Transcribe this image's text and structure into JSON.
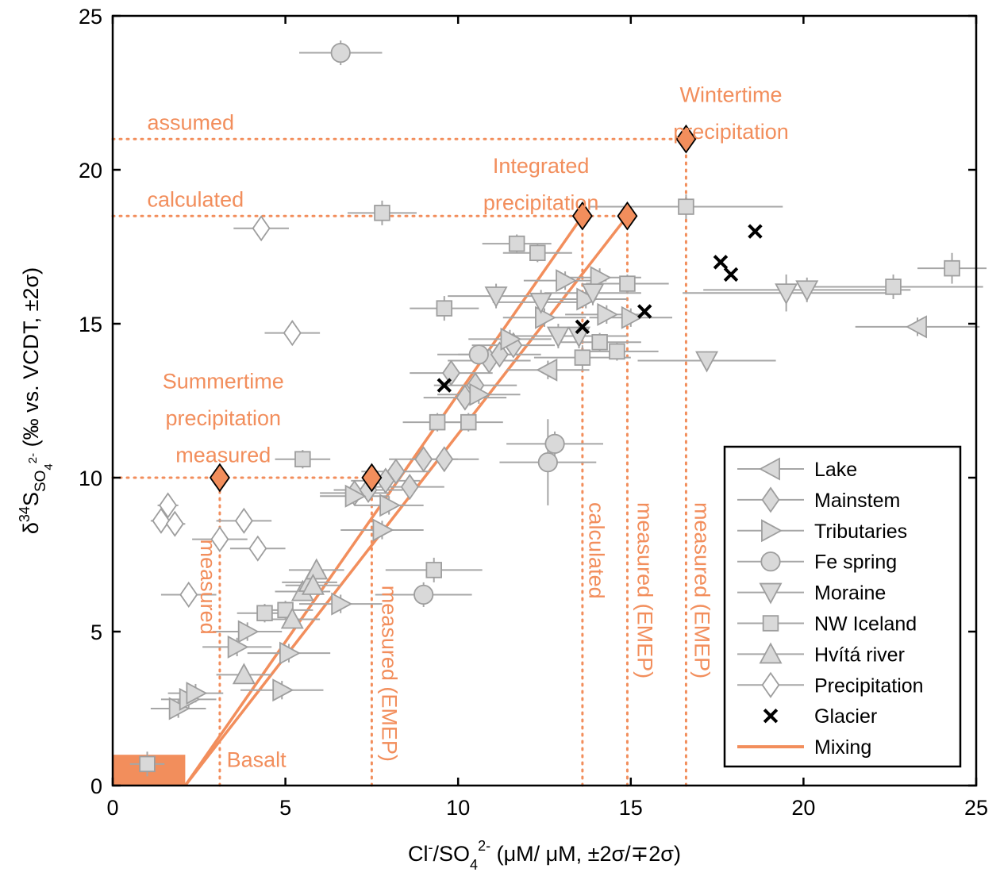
{
  "chart_data": {
    "type": "scatter",
    "xlim": [
      0,
      25
    ],
    "ylim": [
      0,
      25
    ],
    "xticks": [
      0,
      5,
      10,
      15,
      20,
      25
    ],
    "yticks": [
      0,
      5,
      10,
      15,
      20,
      25
    ],
    "xlabel": {
      "main": "Cl",
      "sup1": "-",
      "mid": "/SO",
      "sub": "4",
      "sup2": "2-",
      "rest": " (μM/ μM, ±2σ/∓2σ)"
    },
    "ylabel": {
      "delta": "δ",
      "sup": "34",
      "main": "S",
      "sub": "SO",
      "subsub": "4",
      "subsup": "2-",
      "rest": " (‰ vs. VCDT, ±2σ)"
    },
    "colors": {
      "marker_fill": "#D9D9D9",
      "marker_edge": "#9E9E9E",
      "error_bar": "#A6A6A6",
      "mixing": "#F28E5C",
      "endmember": "#F28E5C",
      "glacier": "#000000"
    },
    "legend": {
      "position": "bottom-right",
      "entries": [
        {
          "label": "Lake",
          "marker": "triangle-left"
        },
        {
          "label": "Mainstem",
          "marker": "diamond"
        },
        {
          "label": "Tributaries",
          "marker": "triangle-right"
        },
        {
          "label": "Fe spring",
          "marker": "circle"
        },
        {
          "label": "Moraine",
          "marker": "triangle-down"
        },
        {
          "label": "NW Iceland",
          "marker": "square"
        },
        {
          "label": "Hvítá river",
          "marker": "triangle-up"
        },
        {
          "label": "Precipitation",
          "marker": "diamond-open"
        },
        {
          "label": "Glacier",
          "marker": "x"
        },
        {
          "label": "Mixing",
          "marker": "line"
        }
      ]
    },
    "annotations": [
      {
        "text": "Wintertime",
        "x": 17.9,
        "y": 22.2,
        "anchor": "middle",
        "rotate": false
      },
      {
        "text": "precipitation",
        "x": 17.9,
        "y": 21.0,
        "anchor": "middle",
        "rotate": false
      },
      {
        "text": "Integrated",
        "x": 12.4,
        "y": 19.9,
        "anchor": "middle",
        "rotate": false
      },
      {
        "text": "precipitation",
        "x": 12.4,
        "y": 18.7,
        "anchor": "middle",
        "rotate": false
      },
      {
        "text": "assumed",
        "x": 1.0,
        "y": 21.3,
        "anchor": "start",
        "rotate": false
      },
      {
        "text": "calculated",
        "x": 1.0,
        "y": 18.8,
        "anchor": "start",
        "rotate": false
      },
      {
        "text": "Summertime",
        "x": 3.2,
        "y": 12.9,
        "anchor": "middle",
        "rotate": false
      },
      {
        "text": "precipitation",
        "x": 3.2,
        "y": 11.7,
        "anchor": "middle",
        "rotate": false
      },
      {
        "text": "measured",
        "x": 3.2,
        "y": 10.5,
        "anchor": "middle",
        "rotate": false
      },
      {
        "text": "Basalt",
        "x": 3.3,
        "y": 0.6,
        "anchor": "start",
        "rotate": false
      },
      {
        "text": "measured",
        "x": 2.55,
        "y": 8.0,
        "anchor": "start",
        "rotate": true
      },
      {
        "text": "measured (EMEP)",
        "x": 7.8,
        "y": 6.5,
        "anchor": "start",
        "rotate": true
      },
      {
        "text": "calculated",
        "x": 13.8,
        "y": 9.2,
        "anchor": "start",
        "rotate": true
      },
      {
        "text": "measured (EMEP)",
        "x": 15.2,
        "y": 9.2,
        "anchor": "start",
        "rotate": true
      },
      {
        "text": "measured (EMEP)",
        "x": 16.85,
        "y": 9.2,
        "anchor": "start",
        "rotate": true
      }
    ],
    "guides": [
      {
        "type": "h",
        "x1": 0,
        "x2": 16.6,
        "y": 21.0
      },
      {
        "type": "h",
        "x1": 0,
        "x2": 14.9,
        "y": 18.5
      },
      {
        "type": "h",
        "x1": 0,
        "x2": 7.5,
        "y": 10.0
      },
      {
        "type": "v",
        "x": 3.1,
        "y1": 0,
        "y2": 10.0
      },
      {
        "type": "v",
        "x": 7.5,
        "y1": 0,
        "y2": 10.0
      },
      {
        "type": "v",
        "x": 13.6,
        "y1": 0,
        "y2": 18.5
      },
      {
        "type": "v",
        "x": 14.9,
        "y1": 0,
        "y2": 18.5
      },
      {
        "type": "v",
        "x": 16.6,
        "y1": 0,
        "y2": 21.0
      }
    ],
    "basalt_box": {
      "x1": 0,
      "x2": 2.1,
      "y1": 0,
      "y2": 1.0
    },
    "mixing_lines": [
      {
        "x": [
          2.1,
          13.6
        ],
        "y": [
          0,
          18.5
        ]
      },
      {
        "x": [
          2.1,
          14.9
        ],
        "y": [
          0,
          18.5
        ]
      }
    ],
    "endmembers": [
      {
        "x": 3.1,
        "y": 10.0
      },
      {
        "x": 7.5,
        "y": 10.0
      },
      {
        "x": 13.6,
        "y": 18.5
      },
      {
        "x": 14.9,
        "y": 18.5
      },
      {
        "x": 16.6,
        "y": 21.0
      }
    ],
    "series": [
      {
        "name": "Lake",
        "marker": "triangle-left",
        "points": [
          {
            "x": 23.3,
            "y": 14.9,
            "xe": 1.8,
            "ye": 0.3
          },
          {
            "x": 12.6,
            "y": 13.5,
            "xe": 1.2,
            "ye": 0.3
          }
        ]
      },
      {
        "name": "Mainstem",
        "marker": "diamond",
        "points": [
          {
            "x": 7.0,
            "y": 9.5,
            "xe": 1.0,
            "ye": 0.3
          },
          {
            "x": 7.4,
            "y": 9.6,
            "xe": 1.0,
            "ye": 0.3
          },
          {
            "x": 7.9,
            "y": 9.9,
            "xe": 1.0,
            "ye": 0.3
          },
          {
            "x": 8.2,
            "y": 10.2,
            "xe": 1.0,
            "ye": 0.3
          },
          {
            "x": 8.6,
            "y": 9.7,
            "xe": 1.0,
            "ye": 0.3
          },
          {
            "x": 9.0,
            "y": 10.6,
            "xe": 1.0,
            "ye": 0.3
          },
          {
            "x": 9.8,
            "y": 13.4,
            "xe": 1.2,
            "ye": 0.3
          },
          {
            "x": 10.2,
            "y": 12.6,
            "xe": 1.2,
            "ye": 0.3
          },
          {
            "x": 10.5,
            "y": 13.0,
            "xe": 1.2,
            "ye": 0.3
          },
          {
            "x": 10.9,
            "y": 13.8,
            "xe": 1.2,
            "ye": 0.3
          },
          {
            "x": 11.2,
            "y": 14.0,
            "xe": 1.2,
            "ye": 0.3
          },
          {
            "x": 11.6,
            "y": 14.3,
            "xe": 1.2,
            "ye": 0.3
          },
          {
            "x": 9.6,
            "y": 10.6,
            "xe": 1.0,
            "ye": 0.3
          }
        ]
      },
      {
        "name": "Tributaries",
        "marker": "triangle-right",
        "points": [
          {
            "x": 1.9,
            "y": 2.5,
            "xe": 0.8,
            "ye": 0.3
          },
          {
            "x": 2.2,
            "y": 2.8,
            "xe": 0.8,
            "ye": 0.3
          },
          {
            "x": 2.4,
            "y": 3.0,
            "xe": 0.8,
            "ye": 0.3
          },
          {
            "x": 3.6,
            "y": 4.5,
            "xe": 1.0,
            "ye": 0.3
          },
          {
            "x": 3.9,
            "y": 5.0,
            "xe": 1.0,
            "ye": 0.3
          },
          {
            "x": 4.9,
            "y": 3.1,
            "xe": 1.2,
            "ye": 0.3
          },
          {
            "x": 5.1,
            "y": 4.3,
            "xe": 1.2,
            "ye": 0.3
          },
          {
            "x": 7.8,
            "y": 8.3,
            "xe": 1.2,
            "ye": 0.3
          },
          {
            "x": 6.6,
            "y": 5.9,
            "xe": 1.2,
            "ye": 0.3
          },
          {
            "x": 7.0,
            "y": 9.4,
            "xe": 1.0,
            "ye": 0.3
          },
          {
            "x": 8.0,
            "y": 9.1,
            "xe": 1.0,
            "ye": 0.3
          },
          {
            "x": 10.6,
            "y": 12.7,
            "xe": 1.2,
            "ye": 0.3
          },
          {
            "x": 11.5,
            "y": 14.5,
            "xe": 1.2,
            "ye": 0.3
          },
          {
            "x": 12.5,
            "y": 15.2,
            "xe": 1.2,
            "ye": 0.3
          },
          {
            "x": 13.1,
            "y": 16.4,
            "xe": 1.2,
            "ye": 0.3
          },
          {
            "x": 13.7,
            "y": 15.8,
            "xe": 1.2,
            "ye": 0.3
          },
          {
            "x": 14.1,
            "y": 16.5,
            "xe": 1.2,
            "ye": 0.3
          },
          {
            "x": 14.3,
            "y": 15.3,
            "xe": 1.2,
            "ye": 0.3
          },
          {
            "x": 15.0,
            "y": 15.2,
            "xe": 1.2,
            "ye": 0.3
          }
        ]
      },
      {
        "name": "Fe spring",
        "marker": "circle",
        "points": [
          {
            "x": 6.6,
            "y": 23.8,
            "xe": 1.2,
            "ye": 0.4
          },
          {
            "x": 10.6,
            "y": 14.0,
            "xe": 1.2,
            "ye": 0.3
          },
          {
            "x": 12.8,
            "y": 11.1,
            "xe": 1.4,
            "ye": 0.4
          },
          {
            "x": 12.6,
            "y": 10.5,
            "xe": 1.4,
            "ye": 1.4
          },
          {
            "x": 9.0,
            "y": 6.2,
            "xe": 1.4,
            "ye": 0.4
          }
        ]
      },
      {
        "name": "Moraine",
        "marker": "triangle-down",
        "points": [
          {
            "x": 11.1,
            "y": 15.9,
            "xe": 1.4,
            "ye": 0.4
          },
          {
            "x": 12.4,
            "y": 15.7,
            "xe": 1.4,
            "ye": 0.4
          },
          {
            "x": 12.9,
            "y": 14.6,
            "xe": 1.4,
            "ye": 0.4
          },
          {
            "x": 13.5,
            "y": 14.6,
            "xe": 1.4,
            "ye": 0.4
          },
          {
            "x": 13.9,
            "y": 16.0,
            "xe": 1.4,
            "ye": 0.4
          },
          {
            "x": 17.2,
            "y": 13.8,
            "xe": 2.0,
            "ye": 0.3
          },
          {
            "x": 19.5,
            "y": 16.0,
            "xe": 3.0,
            "ye": 0.6
          },
          {
            "x": 20.1,
            "y": 16.1,
            "xe": 3.0,
            "ye": 0.4
          }
        ]
      },
      {
        "name": "NW Iceland",
        "marker": "square",
        "points": [
          {
            "x": 1.0,
            "y": 0.7,
            "xe": 0.5,
            "ye": 0.4
          },
          {
            "x": 5.5,
            "y": 10.6,
            "xe": 0.8,
            "ye": 0.3
          },
          {
            "x": 4.4,
            "y": 5.6,
            "xe": 0.8,
            "ye": 0.3
          },
          {
            "x": 5.0,
            "y": 5.7,
            "xe": 0.8,
            "ye": 0.3
          },
          {
            "x": 7.8,
            "y": 18.6,
            "xe": 1.0,
            "ye": 0.4
          },
          {
            "x": 9.6,
            "y": 15.5,
            "xe": 1.0,
            "ye": 0.4
          },
          {
            "x": 9.3,
            "y": 7.0,
            "xe": 1.4,
            "ye": 0.4
          },
          {
            "x": 9.4,
            "y": 11.8,
            "xe": 1.0,
            "ye": 0.3
          },
          {
            "x": 10.3,
            "y": 11.8,
            "xe": 1.0,
            "ye": 0.3
          },
          {
            "x": 11.7,
            "y": 17.6,
            "xe": 1.0,
            "ye": 0.3
          },
          {
            "x": 12.3,
            "y": 17.3,
            "xe": 1.0,
            "ye": 0.3
          },
          {
            "x": 13.6,
            "y": 13.9,
            "xe": 1.4,
            "ye": 0.4
          },
          {
            "x": 14.1,
            "y": 14.4,
            "xe": 1.2,
            "ye": 0.3
          },
          {
            "x": 14.6,
            "y": 14.1,
            "xe": 1.2,
            "ye": 0.3
          },
          {
            "x": 14.9,
            "y": 16.3,
            "xe": 1.2,
            "ye": 0.3
          },
          {
            "x": 16.6,
            "y": 18.8,
            "xe": 2.8,
            "ye": 0.4
          },
          {
            "x": 22.6,
            "y": 16.2,
            "xe": 2.6,
            "ye": 0.4
          },
          {
            "x": 24.3,
            "y": 16.8,
            "xe": 1.0,
            "ye": 0.5
          }
        ]
      },
      {
        "name": "Hvítá river",
        "marker": "triangle-up",
        "points": [
          {
            "x": 3.8,
            "y": 3.6,
            "xe": 0.8,
            "ye": 0.3
          },
          {
            "x": 5.2,
            "y": 5.4,
            "xe": 0.8,
            "ye": 0.3
          },
          {
            "x": 5.5,
            "y": 6.3,
            "xe": 0.8,
            "ye": 0.3
          },
          {
            "x": 5.7,
            "y": 6.6,
            "xe": 0.8,
            "ye": 0.3
          },
          {
            "x": 5.9,
            "y": 7.0,
            "xe": 0.8,
            "ye": 0.3
          },
          {
            "x": 5.8,
            "y": 6.5,
            "xe": 0.8,
            "ye": 0.3
          }
        ]
      },
      {
        "name": "Precipitation",
        "marker": "diamond-open",
        "points": [
          {
            "x": 4.3,
            "y": 18.1,
            "xe": 0.8,
            "ye": 0.3
          },
          {
            "x": 5.2,
            "y": 14.7,
            "xe": 0.8,
            "ye": 0.4
          },
          {
            "x": 1.6,
            "y": 9.1,
            "xe": 0.3,
            "ye": 0.3
          },
          {
            "x": 1.4,
            "y": 8.6,
            "xe": 0.3,
            "ye": 0.3
          },
          {
            "x": 1.8,
            "y": 8.5,
            "xe": 0.3,
            "ye": 0.3
          },
          {
            "x": 3.1,
            "y": 8.0,
            "xe": 0.8,
            "ye": 0.3
          },
          {
            "x": 3.8,
            "y": 8.6,
            "xe": 0.8,
            "ye": 0.3
          },
          {
            "x": 4.2,
            "y": 7.7,
            "xe": 0.8,
            "ye": 0.3
          },
          {
            "x": 2.2,
            "y": 6.2,
            "xe": 0.8,
            "ye": 0.3
          }
        ]
      },
      {
        "name": "Glacier",
        "marker": "x",
        "points": [
          {
            "x": 9.6,
            "y": 13.0
          },
          {
            "x": 13.6,
            "y": 14.9
          },
          {
            "x": 15.4,
            "y": 15.4
          },
          {
            "x": 17.6,
            "y": 17.0
          },
          {
            "x": 17.9,
            "y": 16.6
          },
          {
            "x": 18.6,
            "y": 18.0
          }
        ]
      }
    ]
  }
}
